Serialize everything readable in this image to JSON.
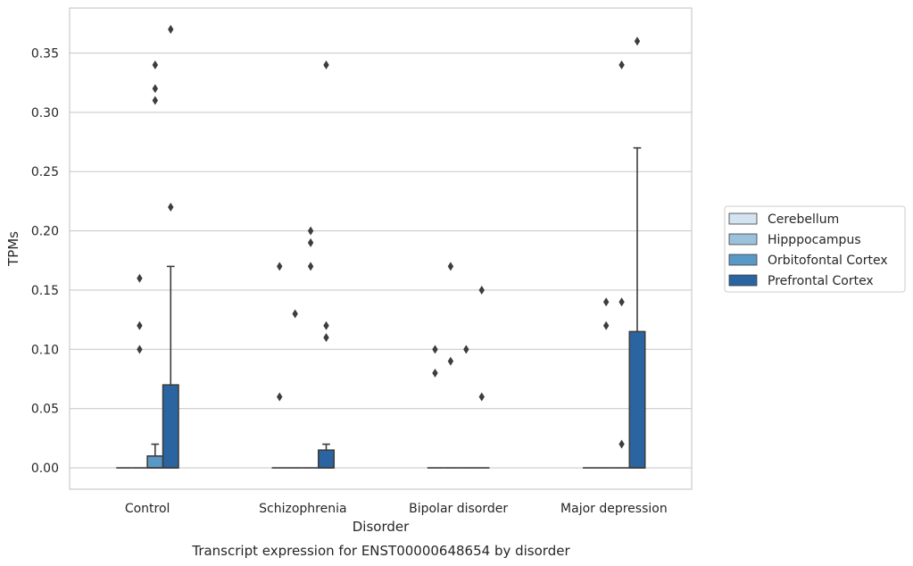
{
  "chart_data": {
    "type": "box",
    "title": "",
    "caption": "Transcript expression for ENST00000648654 by disorder",
    "xlabel": "Disorder",
    "ylabel": "TPMs",
    "ylim": [
      -0.018,
      0.388
    ],
    "yticks": [
      "0.00",
      "0.05",
      "0.10",
      "0.15",
      "0.20",
      "0.25",
      "0.30",
      "0.35"
    ],
    "ytick_values": [
      0,
      0.05,
      0.1,
      0.15,
      0.2,
      0.25,
      0.3,
      0.35
    ],
    "grid": "horizontal",
    "legend_position": "right",
    "categories": [
      "Control",
      "Schizophrenia",
      "Bipolar disorder",
      "Major depression"
    ],
    "series": [
      {
        "name": "Cerebellum",
        "color": "#d3e3ef",
        "boxes": [
          {
            "q1": 0,
            "median": 0,
            "q3": 0,
            "whisker_low": 0,
            "whisker_high": 0,
            "outliers": []
          },
          {
            "q1": 0,
            "median": 0,
            "q3": 0,
            "whisker_low": 0,
            "whisker_high": 0,
            "outliers": [
              0.06,
              0.17
            ]
          },
          {
            "q1": 0,
            "median": 0,
            "q3": 0,
            "whisker_low": 0,
            "whisker_high": 0,
            "outliers": [
              0.08,
              0.1
            ]
          },
          {
            "q1": 0,
            "median": 0,
            "q3": 0,
            "whisker_low": 0,
            "whisker_high": 0,
            "outliers": []
          }
        ]
      },
      {
        "name": "Hipppocampus",
        "color": "#9cc1dc",
        "boxes": [
          {
            "q1": 0,
            "median": 0,
            "q3": 0,
            "whisker_low": 0,
            "whisker_high": 0,
            "outliers": [
              0.1,
              0.12,
              0.16
            ]
          },
          {
            "q1": 0,
            "median": 0,
            "q3": 0,
            "whisker_low": 0,
            "whisker_high": 0,
            "outliers": [
              0.13
            ]
          },
          {
            "q1": 0,
            "median": 0,
            "q3": 0,
            "whisker_low": 0,
            "whisker_high": 0,
            "outliers": [
              0.09,
              0.17
            ]
          },
          {
            "q1": 0,
            "median": 0,
            "q3": 0,
            "whisker_low": 0,
            "whisker_high": 0,
            "outliers": [
              0.12,
              0.14
            ]
          }
        ]
      },
      {
        "name": "Orbitofontal Cortex",
        "color": "#5a98c6",
        "boxes": [
          {
            "q1": 0,
            "median": 0,
            "q3": 0.01,
            "whisker_low": 0,
            "whisker_high": 0.02,
            "outliers": [
              0.31,
              0.32,
              0.34
            ]
          },
          {
            "q1": 0,
            "median": 0,
            "q3": 0,
            "whisker_low": 0,
            "whisker_high": 0,
            "outliers": [
              0.17,
              0.19,
              0.2
            ]
          },
          {
            "q1": 0,
            "median": 0,
            "q3": 0,
            "whisker_low": 0,
            "whisker_high": 0,
            "outliers": [
              0.1
            ]
          },
          {
            "q1": 0,
            "median": 0,
            "q3": 0,
            "whisker_low": 0,
            "whisker_high": 0,
            "outliers": [
              0.02,
              0.14,
              0.34
            ]
          }
        ]
      },
      {
        "name": "Prefrontal Cortex",
        "color": "#2a65a2",
        "boxes": [
          {
            "q1": 0,
            "median": 0,
            "q3": 0.07,
            "whisker_low": 0,
            "whisker_high": 0.17,
            "outliers": [
              0.22,
              0.37
            ]
          },
          {
            "q1": 0,
            "median": 0,
            "q3": 0.015,
            "whisker_low": 0,
            "whisker_high": 0.02,
            "outliers": [
              0.11,
              0.12,
              0.34
            ]
          },
          {
            "q1": 0,
            "median": 0,
            "q3": 0,
            "whisker_low": 0,
            "whisker_high": 0,
            "outliers": [
              0.06,
              0.15
            ]
          },
          {
            "q1": 0,
            "median": 0,
            "q3": 0.115,
            "whisker_low": 0,
            "whisker_high": 0.27,
            "outliers": [
              0.36
            ]
          }
        ]
      }
    ]
  }
}
